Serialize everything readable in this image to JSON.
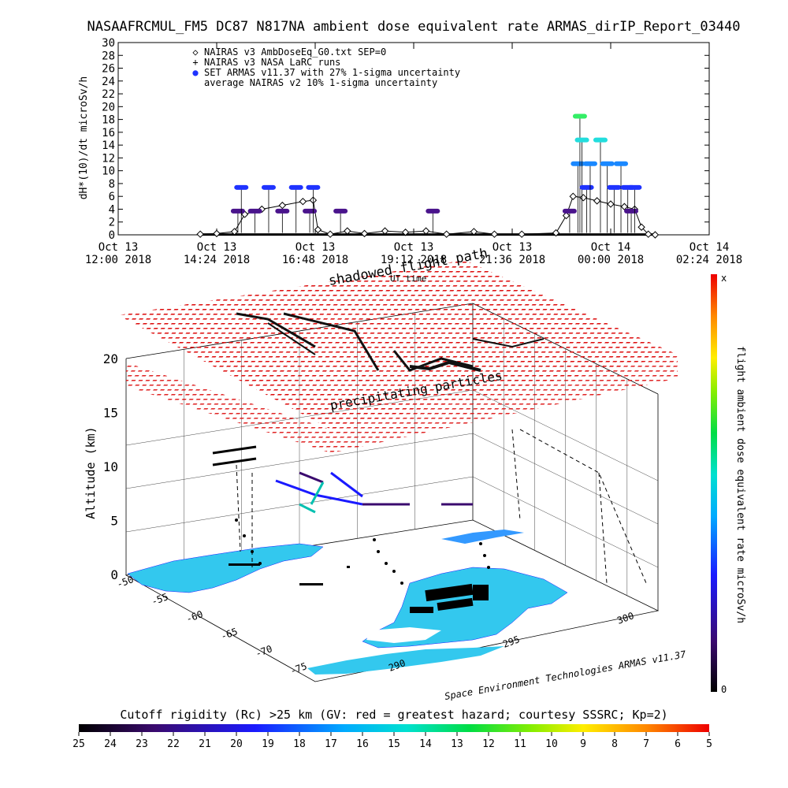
{
  "title": "NASAAFRCMUL_FM5 DC87 N817NA ambient dose equivalent rate ARMAS_dirIP_Report_03440",
  "chart_data": [
    {
      "type": "scatter",
      "ylabel": "dH*(10)/dt microSv/h",
      "ylim": [
        0,
        30
      ],
      "y_ticks": [
        0,
        2,
        4,
        6,
        8,
        10,
        12,
        14,
        16,
        18,
        20,
        22,
        24,
        26,
        28,
        30
      ],
      "x_ticks": [
        {
          "line1": "Oct 13",
          "line2": "12:00 2018"
        },
        {
          "line1": "Oct 13",
          "line2": "14:24 2018"
        },
        {
          "line1": "Oct 13",
          "line2": "16:48 2018"
        },
        {
          "line1": "Oct 13",
          "line2": "19:12 2018"
        },
        {
          "line1": "Oct 13",
          "line2": "21:36 2018"
        },
        {
          "line1": "Oct 14",
          "line2": "00:00 2018"
        },
        {
          "line1": "Oct 14",
          "line2": "02:24 2018"
        }
      ],
      "legend": [
        {
          "symbol": "◇",
          "text": "NAIRAS v3 AmbDoseEq_G0.txt SEP=0",
          "color": "#000000"
        },
        {
          "symbol": "+",
          "text": "NAIRAS v3 NASA LaRC runs",
          "color": "#000000"
        },
        {
          "symbol": "●",
          "text": "SET ARMAS v11.37 with 27% 1-sigma uncertainty",
          "color": "#1f33ff"
        },
        {
          "symbol": "",
          "text": "average NAIRAS v2 10% 1-sigma uncertainty",
          "color": "#000000"
        }
      ],
      "series": [
        {
          "name": "NAIRAS v3 AmbDoseEq_G0.txt SEP=0",
          "marker": "diamond",
          "points": [
            [
              "Oct 13 14:00",
              0.1
            ],
            [
              "Oct 13 14:24",
              0.2
            ],
            [
              "Oct 13 14:50",
              0.5
            ],
            [
              "Oct 13 15:05",
              3.2
            ],
            [
              "Oct 13 15:30",
              4.0
            ],
            [
              "Oct 13 16:00",
              4.6
            ],
            [
              "Oct 13 16:30",
              5.2
            ],
            [
              "Oct 13 16:45",
              5.4
            ],
            [
              "Oct 13 16:52",
              0.8
            ],
            [
              "Oct 13 17:10",
              0.1
            ],
            [
              "Oct 13 17:35",
              0.6
            ],
            [
              "Oct 13 18:00",
              0.2
            ],
            [
              "Oct 13 18:30",
              0.6
            ],
            [
              "Oct 13 19:00",
              0.4
            ],
            [
              "Oct 13 19:30",
              0.6
            ],
            [
              "Oct 13 20:00",
              0.1
            ],
            [
              "Oct 13 20:40",
              0.5
            ],
            [
              "Oct 13 21:10",
              0.1
            ],
            [
              "Oct 13 21:50",
              0.1
            ],
            [
              "Oct 13 22:40",
              0.3
            ],
            [
              "Oct 13 22:55",
              3.0
            ],
            [
              "Oct 13 23:05",
              6.0
            ],
            [
              "Oct 13 23:20",
              5.8
            ],
            [
              "Oct 13 23:40",
              5.3
            ],
            [
              "Oct 14 00:00",
              4.8
            ],
            [
              "Oct 14 00:20",
              4.4
            ],
            [
              "Oct 14 00:35",
              4.0
            ],
            [
              "Oct 14 00:45",
              1.2
            ],
            [
              "Oct 14 00:55",
              0.1
            ],
            [
              "Oct 14 01:05",
              0.0
            ]
          ]
        },
        {
          "name": "SET ARMAS v11.37 with 27% 1-sigma uncertainty",
          "marker": "dot",
          "points": [
            [
              "Oct 13 14:55",
              3.7
            ],
            [
              "Oct 13 15:00",
              7.4
            ],
            [
              "Oct 13 15:20",
              3.7
            ],
            [
              "Oct 13 15:40",
              7.4
            ],
            [
              "Oct 13 16:00",
              3.7
            ],
            [
              "Oct 13 16:20",
              7.4
            ],
            [
              "Oct 13 16:40",
              3.7
            ],
            [
              "Oct 13 16:45",
              7.4
            ],
            [
              "Oct 13 17:25",
              3.7
            ],
            [
              "Oct 13 19:40",
              3.7
            ],
            [
              "Oct 13 23:00",
              3.7
            ],
            [
              "Oct 13 23:12",
              11.1
            ],
            [
              "Oct 13 23:15",
              18.5
            ],
            [
              "Oct 13 23:18",
              14.8
            ],
            [
              "Oct 13 23:25",
              7.4
            ],
            [
              "Oct 13 23:30",
              11.1
            ],
            [
              "Oct 13 23:45",
              14.8
            ],
            [
              "Oct 13 23:55",
              11.1
            ],
            [
              "Oct 14 00:05",
              7.4
            ],
            [
              "Oct 14 00:15",
              11.1
            ],
            [
              "Oct 14 00:25",
              7.4
            ],
            [
              "Oct 14 00:30",
              3.7
            ],
            [
              "Oct 14 00:35",
              7.4
            ]
          ]
        }
      ],
      "x_start": "Oct 13 12:00",
      "x_end": "Oct 14 02:24"
    },
    {
      "type": "scatter",
      "zlabel": "Altitude (km)",
      "z_ticks": [
        "0",
        "5",
        "10",
        "15",
        "20"
      ],
      "lat_ticks": [
        "-50",
        "-55",
        "-60",
        "-65",
        "-70",
        "-75"
      ],
      "lon_ticks": [
        "290",
        "295",
        "300"
      ],
      "colorbar_label": "flight ambient dose equivalent rate microSv/h",
      "colorbar_top": "x",
      "colorbar_bottom": "0",
      "annotations": [
        "shadowed flight path",
        "UT time",
        "precipitating particles"
      ],
      "credit": "Space Environment Technologies ARMAS v11.37"
    }
  ],
  "cutoff_scale": {
    "title": "Cutoff rigidity (Rc) >25 km (GV: red = greatest hazard; courtesy SSSRC; Kp=2)",
    "ticks": [
      "25",
      "24",
      "23",
      "22",
      "21",
      "20",
      "19",
      "18",
      "17",
      "16",
      "15",
      "14",
      "13",
      "12",
      "11",
      "10",
      "9",
      "8",
      "7",
      "6",
      "5"
    ]
  }
}
